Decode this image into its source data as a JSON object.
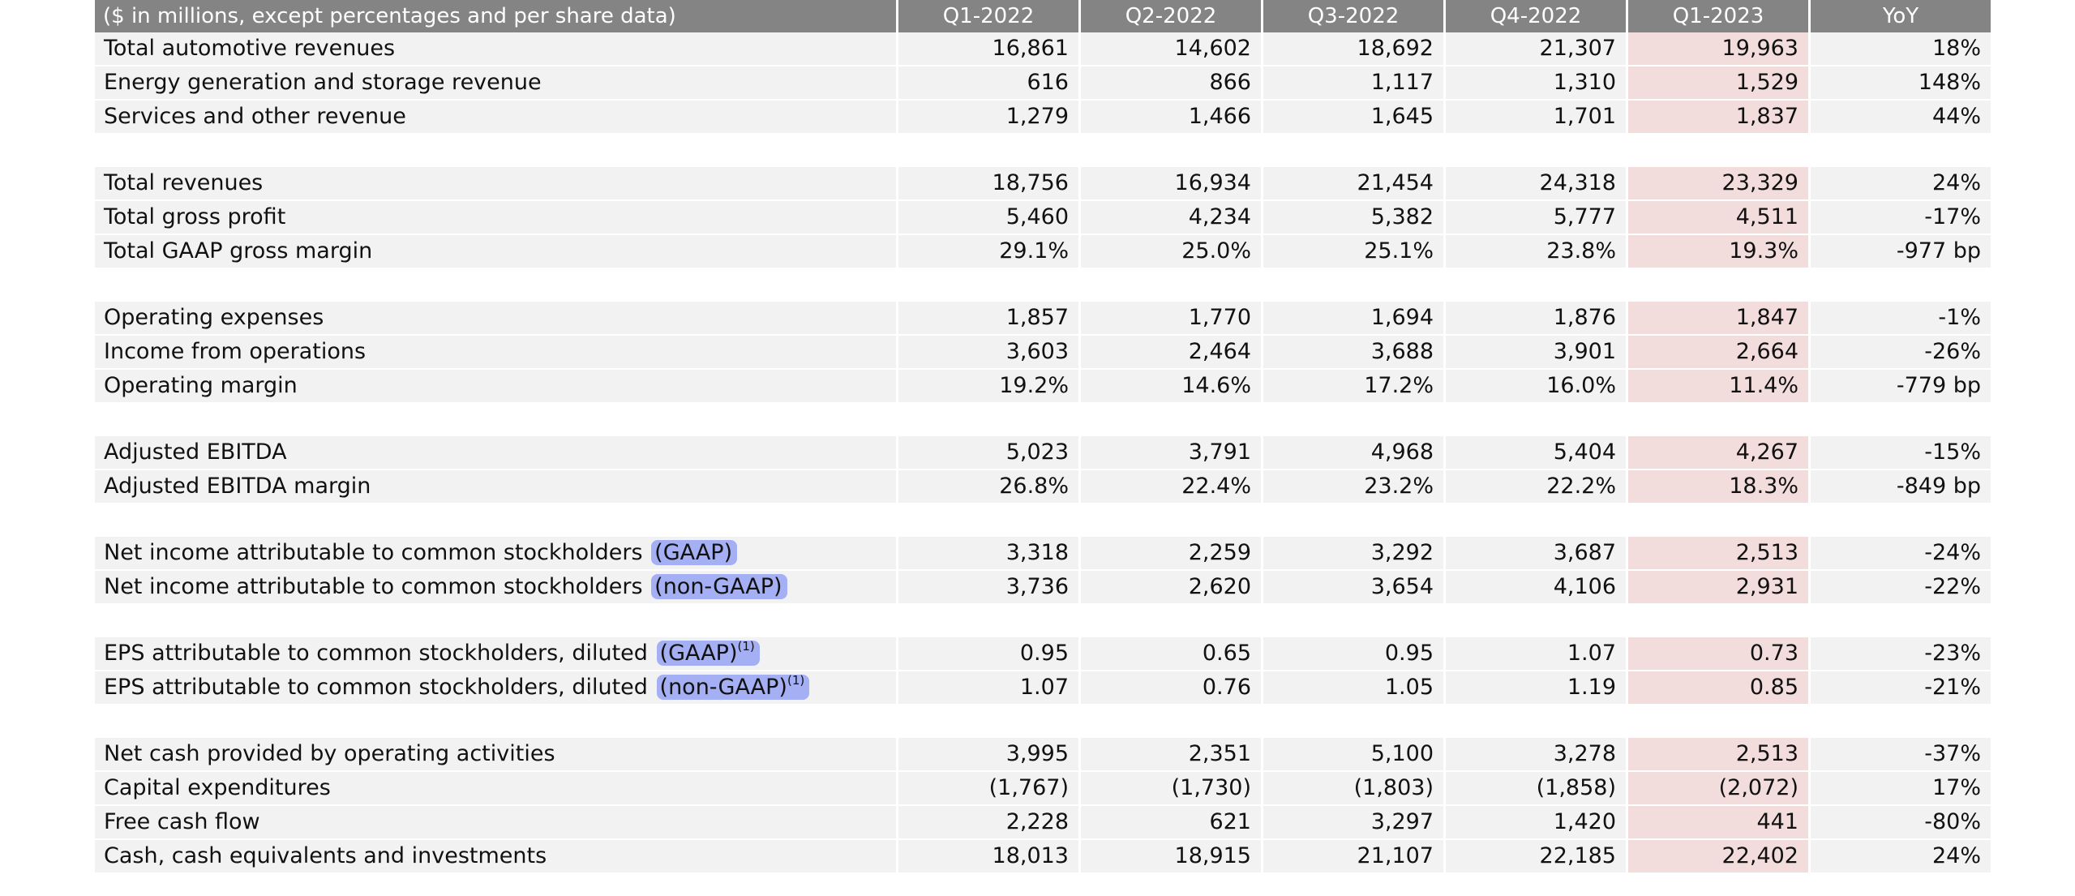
{
  "table": {
    "headers": [
      "($ in millions, except percentages and per share data)",
      "Q1-2022",
      "Q2-2022",
      "Q3-2022",
      "Q4-2022",
      "Q1-2023",
      "YoY"
    ],
    "highlight_column_index": 5,
    "highlight_color": "#f2dcdc",
    "marker_color": "#6478f5",
    "groups": [
      [
        {
          "label": "Total automotive revenues",
          "values": [
            "16,861",
            "14,602",
            "18,692",
            "21,307",
            "19,963",
            "18%"
          ]
        },
        {
          "label": "Energy generation and storage revenue",
          "values": [
            "616",
            "866",
            "1,117",
            "1,310",
            "1,529",
            "148%"
          ]
        },
        {
          "label": "Services and other revenue",
          "values": [
            "1,279",
            "1,466",
            "1,645",
            "1,701",
            "1,837",
            "44%"
          ]
        }
      ],
      [
        {
          "label": "Total revenues",
          "values": [
            "18,756",
            "16,934",
            "21,454",
            "24,318",
            "23,329",
            "24%"
          ]
        },
        {
          "label": "Total gross profit",
          "values": [
            "5,460",
            "4,234",
            "5,382",
            "5,777",
            "4,511",
            "-17%"
          ]
        },
        {
          "label": "Total GAAP gross margin",
          "values": [
            "29.1%",
            "25.0%",
            "25.1%",
            "23.8%",
            "19.3%",
            "-977 bp"
          ]
        }
      ],
      [
        {
          "label": "Operating expenses",
          "values": [
            "1,857",
            "1,770",
            "1,694",
            "1,876",
            "1,847",
            "-1%"
          ]
        },
        {
          "label": "Income from operations",
          "values": [
            "3,603",
            "2,464",
            "3,688",
            "3,901",
            "2,664",
            "-26%"
          ]
        },
        {
          "label": "Operating margin",
          "values": [
            "19.2%",
            "14.6%",
            "17.2%",
            "16.0%",
            "11.4%",
            "-779 bp"
          ]
        }
      ],
      [
        {
          "label": "Adjusted EBITDA",
          "values": [
            "5,023",
            "3,791",
            "4,968",
            "5,404",
            "4,267",
            "-15%"
          ]
        },
        {
          "label": "Adjusted EBITDA margin",
          "values": [
            "26.8%",
            "22.4%",
            "23.2%",
            "22.2%",
            "18.3%",
            "-849 bp"
          ]
        }
      ],
      [
        {
          "label": "Net income attributable to common stockholders",
          "marked": "(GAAP)",
          "values": [
            "3,318",
            "2,259",
            "3,292",
            "3,687",
            "2,513",
            "-24%"
          ]
        },
        {
          "label": "Net income attributable to common stockholders",
          "marked": "(non-GAAP)",
          "values": [
            "3,736",
            "2,620",
            "3,654",
            "4,106",
            "2,931",
            "-22%"
          ]
        }
      ],
      [
        {
          "label": "EPS attributable to common stockholders, diluted",
          "marked": "(GAAP)",
          "sup": "(1)",
          "values": [
            "0.95",
            "0.65",
            "0.95",
            "1.07",
            "0.73",
            "-23%"
          ]
        },
        {
          "label": "EPS attributable to common stockholders, diluted",
          "marked": "(non-GAAP)",
          "sup": "(1)",
          "values": [
            "1.07",
            "0.76",
            "1.05",
            "1.19",
            "0.85",
            "-21%"
          ]
        }
      ],
      [
        {
          "label": "Net cash provided by operating activities",
          "values": [
            "3,995",
            "2,351",
            "5,100",
            "3,278",
            "2,513",
            "-37%"
          ]
        },
        {
          "label": "Capital expenditures",
          "values": [
            "(1,767)",
            "(1,730)",
            "(1,803)",
            "(1,858)",
            "(2,072)",
            "17%"
          ]
        },
        {
          "label": "Free cash flow",
          "values": [
            "2,228",
            "621",
            "3,297",
            "1,420",
            "441",
            "-80%"
          ]
        },
        {
          "label": "Cash, cash equivalents and investments",
          "values": [
            "18,013",
            "18,915",
            "21,107",
            "22,185",
            "22,402",
            "24%"
          ]
        }
      ]
    ]
  }
}
